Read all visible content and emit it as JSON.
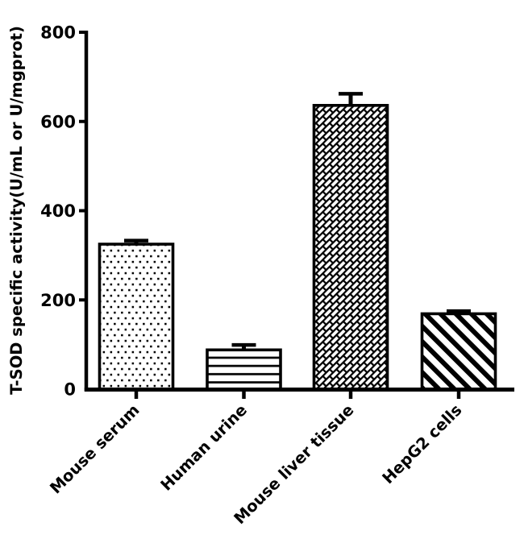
{
  "chart_data": {
    "type": "bar",
    "title": "",
    "xlabel": "",
    "ylabel": "T-SOD specific activity(U/mL or U/mgprot)",
    "categories": [
      "Mouse serum",
      "Human urine",
      "Mouse liver tissue",
      "HepG2 cells"
    ],
    "values": [
      325,
      88,
      636,
      169
    ],
    "errors_upper": [
      8,
      11,
      26,
      6
    ],
    "patterns": [
      "dots",
      "horizontal-lines",
      "weave-bricks",
      "diagonal-stripes"
    ],
    "ylim": [
      0,
      800
    ],
    "yticks": [
      0,
      200,
      400,
      600,
      800
    ],
    "grid": false,
    "legend": "none",
    "bar_outline_color": "#000000",
    "bar_fill_background": "#ffffff",
    "axis_color": "#000000",
    "background_color": "#ffffff",
    "error_bar_style": "upper-cap"
  }
}
